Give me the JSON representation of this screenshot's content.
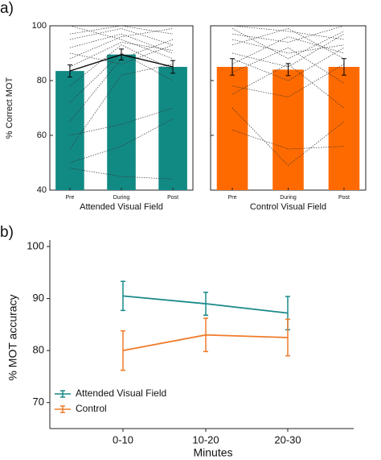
{
  "chart_data": [
    {
      "type": "bar",
      "panel_label": "a)",
      "ylabel": "% Correct MOT",
      "xlabel": "Attended Visual Field",
      "categories": [
        "Pre",
        "During",
        "Post"
      ],
      "values": [
        83.5,
        89.5,
        85
      ],
      "errors": [
        2.2,
        2.0,
        2.3
      ],
      "color": "#128a84",
      "ylim": [
        40,
        100
      ],
      "yticks": [
        40,
        60,
        80,
        100
      ],
      "mean_line": true,
      "individual": [
        [
          95,
          99,
          93
        ],
        [
          92,
          97,
          90
        ],
        [
          88,
          96,
          99
        ],
        [
          85,
          94,
          91
        ],
        [
          100,
          95,
          88
        ],
        [
          78,
          93,
          84
        ],
        [
          72,
          90,
          80
        ],
        [
          65,
          88,
          95
        ],
        [
          55,
          82,
          86
        ],
        [
          48,
          45,
          44
        ],
        [
          60,
          64,
          70
        ],
        [
          50,
          56,
          66
        ],
        [
          97,
          100,
          97
        ],
        [
          90,
          86,
          93
        ]
      ]
    },
    {
      "type": "bar",
      "xlabel": "Control Visual Field",
      "categories": [
        "Pre",
        "During",
        "Post"
      ],
      "values": [
        85,
        84,
        85
      ],
      "errors": [
        3.0,
        2.2,
        3.0
      ],
      "color": "#ff6a00",
      "ylim": [
        40,
        100
      ],
      "yticks": [
        40,
        60,
        80,
        100
      ],
      "mean_line": false,
      "individual": [
        [
          100,
          98,
          95
        ],
        [
          97,
          94,
          100
        ],
        [
          93,
          99,
          88
        ],
        [
          90,
          85,
          97
        ],
        [
          88,
          80,
          92
        ],
        [
          83,
          92,
          79
        ],
        [
          78,
          74,
          86
        ],
        [
          75,
          86,
          70
        ],
        [
          70,
          49,
          65
        ],
        [
          62,
          55,
          56
        ],
        [
          95,
          90,
          93
        ],
        [
          86,
          96,
          90
        ],
        [
          99,
          88,
          98
        ]
      ]
    },
    {
      "type": "line",
      "panel_label": "b)",
      "ylabel": "% MOT accuracy",
      "xlabel": "Minutes",
      "categories": [
        "0-10",
        "10-20",
        "20-30"
      ],
      "ylim": [
        65,
        100
      ],
      "yticks": [
        70,
        80,
        90,
        100
      ],
      "legend": "lower left",
      "series": [
        {
          "name": "Attended Visual Field",
          "color": "#1a8a8a",
          "values": [
            90.5,
            89,
            87.2
          ],
          "errors": [
            2.8,
            2.2,
            3.2
          ]
        },
        {
          "name": "Control",
          "color": "#f07b2a",
          "values": [
            80,
            83,
            82.5
          ],
          "errors": [
            3.8,
            3.2,
            3.5
          ]
        }
      ]
    }
  ]
}
